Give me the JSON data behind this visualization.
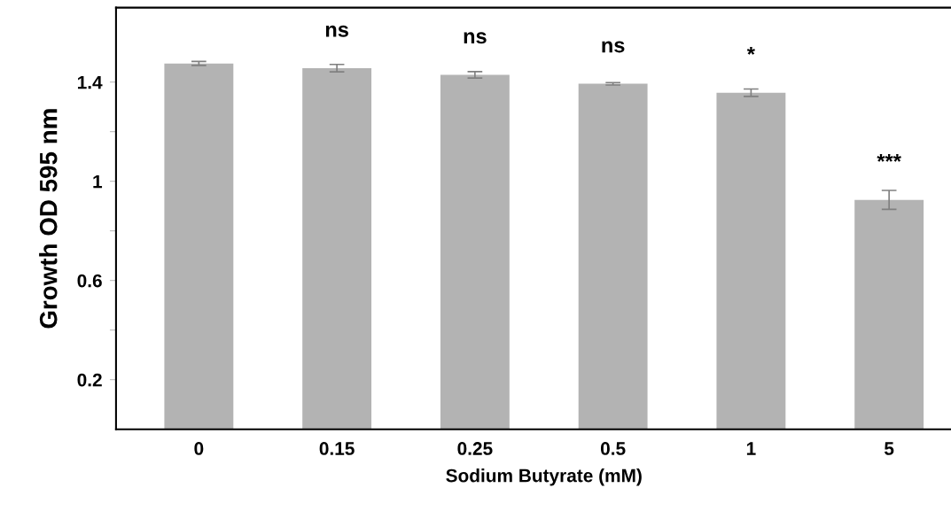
{
  "chart_data": {
    "type": "bar",
    "xlabel": "Sodium Butyrate (mM)",
    "ylabel": "Growth OD 595 nm",
    "categories": [
      "0",
      "0.15",
      "0.25",
      "0.5",
      "1",
      "5"
    ],
    "values": [
      1.475,
      1.456,
      1.429,
      1.393,
      1.357,
      0.925
    ],
    "errors": [
      0.008,
      0.015,
      0.013,
      0.005,
      0.015,
      0.038
    ],
    "color": "#b3b3b3",
    "ylim": [
      0,
      1.7
    ],
    "yticks": [
      {
        "value": 0.2,
        "label": "0.2"
      },
      {
        "value": 0.4,
        "label": null
      },
      {
        "value": 0.6,
        "label": "0.6"
      },
      {
        "value": 0.8,
        "label": null
      },
      {
        "value": 1,
        "label": "1"
      },
      {
        "value": 1.2,
        "label": null
      },
      {
        "value": 1.4,
        "label": "1.4"
      }
    ],
    "annotations": [
      {
        "text": "ns",
        "x": "0.15",
        "y": 1.456
      },
      {
        "text": "ns",
        "x": "0.25",
        "y": 1.429
      },
      {
        "text": "ns",
        "x": "0.5",
        "y": 1.393
      },
      {
        "text": "*",
        "x": "1",
        "y": 1.357
      },
      {
        "text": "***",
        "x": "5",
        "y": 0.925
      }
    ],
    "grid": false,
    "legend": false
  }
}
